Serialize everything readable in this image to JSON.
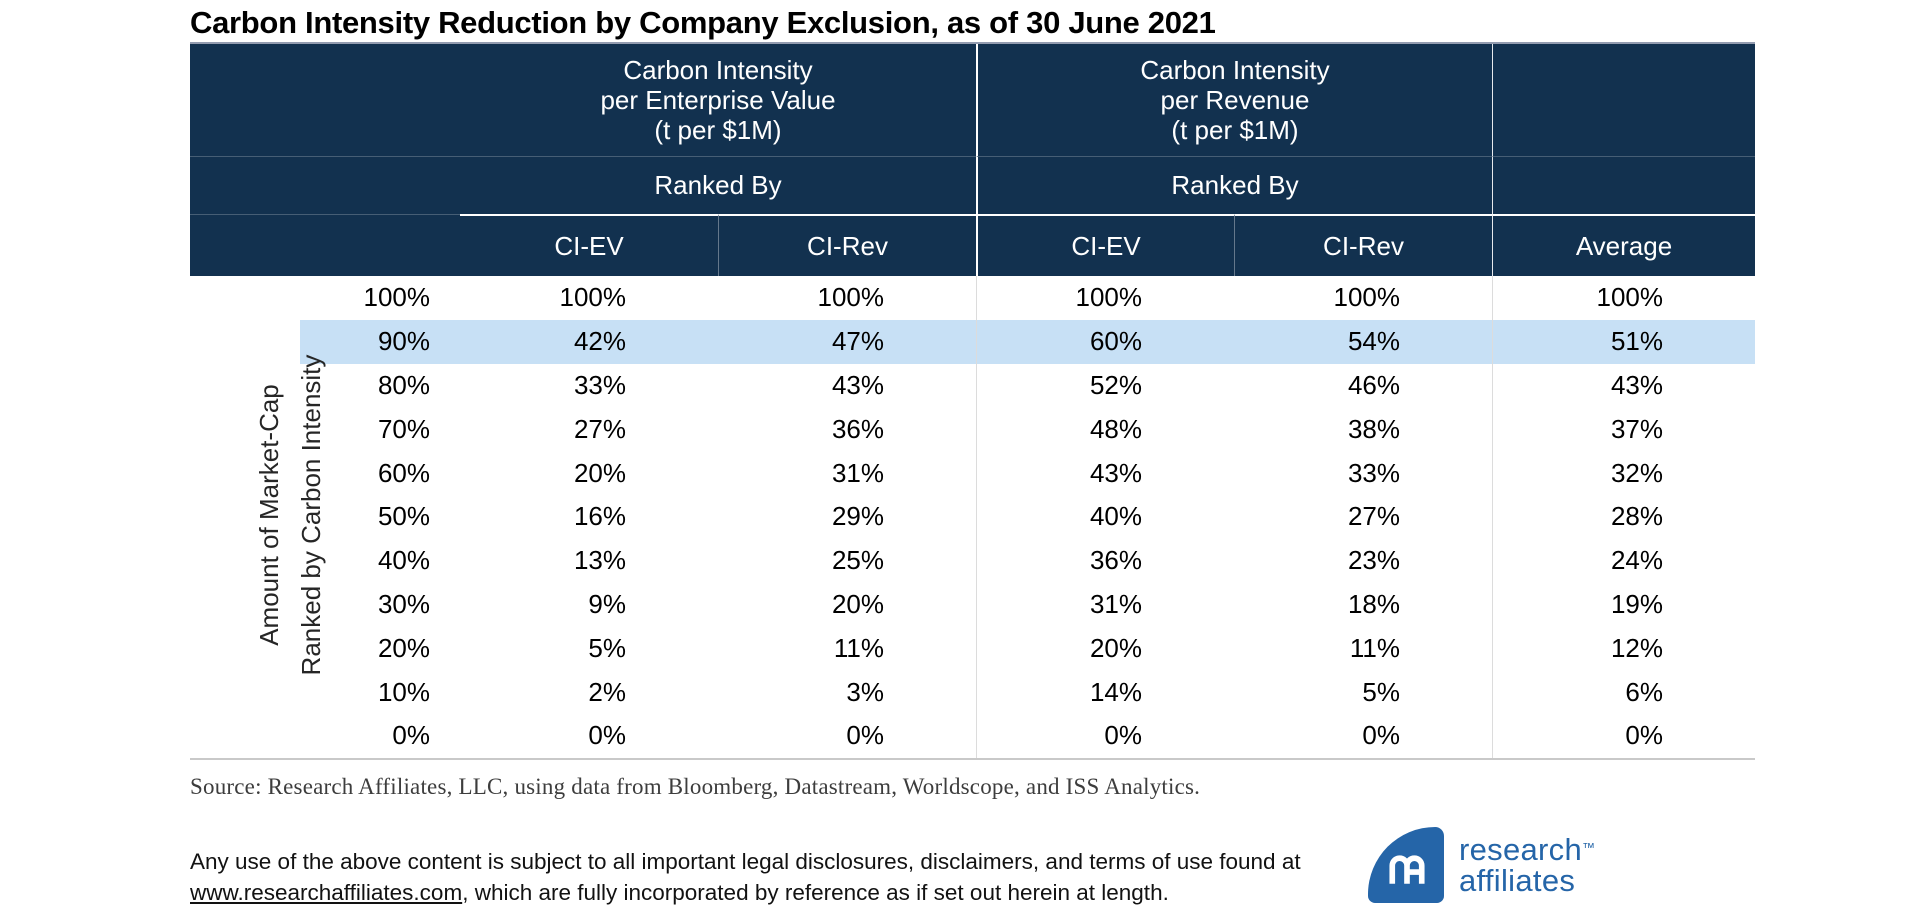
{
  "chart_data": {
    "type": "table",
    "title": "Carbon Intensity Reduction by Company Exclusion, as of 30 June 2021",
    "row_axis_label": {
      "line1": "Amount of Market-Cap",
      "line2": "Ranked by Carbon Intensity"
    },
    "groups": [
      {
        "line1": "Carbon Intensity",
        "line2": "per Enterprise Value",
        "line3": "(t per $1M)",
        "sub": "Ranked By"
      },
      {
        "line1": "Carbon Intensity",
        "line2": "per Revenue",
        "line3": "(t per $1M)",
        "sub": "Ranked By"
      }
    ],
    "columns": [
      "CI-EV",
      "CI-Rev",
      "CI-EV",
      "CI-Rev",
      "Average"
    ],
    "rows": [
      {
        "label": "100%",
        "values": [
          "100%",
          "100%",
          "100%",
          "100%",
          "100%"
        ],
        "highlight": false
      },
      {
        "label": "90%",
        "values": [
          "42%",
          "47%",
          "60%",
          "54%",
          "51%"
        ],
        "highlight": true
      },
      {
        "label": "80%",
        "values": [
          "33%",
          "43%",
          "52%",
          "46%",
          "43%"
        ],
        "highlight": false
      },
      {
        "label": "70%",
        "values": [
          "27%",
          "36%",
          "48%",
          "38%",
          "37%"
        ],
        "highlight": false
      },
      {
        "label": "60%",
        "values": [
          "20%",
          "31%",
          "43%",
          "33%",
          "32%"
        ],
        "highlight": false
      },
      {
        "label": "50%",
        "values": [
          "16%",
          "29%",
          "40%",
          "27%",
          "28%"
        ],
        "highlight": false
      },
      {
        "label": "40%",
        "values": [
          "13%",
          "25%",
          "36%",
          "23%",
          "24%"
        ],
        "highlight": false
      },
      {
        "label": "30%",
        "values": [
          "9%",
          "20%",
          "31%",
          "18%",
          "19%"
        ],
        "highlight": false
      },
      {
        "label": "20%",
        "values": [
          "5%",
          "11%",
          "20%",
          "11%",
          "12%"
        ],
        "highlight": false
      },
      {
        "label": "10%",
        "values": [
          "2%",
          "3%",
          "14%",
          "5%",
          "6%"
        ],
        "highlight": false
      },
      {
        "label": "0%",
        "values": [
          "0%",
          "0%",
          "0%",
          "0%",
          "0%"
        ],
        "highlight": false
      }
    ],
    "highlighted_row_label": "90%",
    "layout_hints": {
      "grid": "off",
      "header_background": "navy",
      "highlight_style": "light-blue row band"
    }
  },
  "source_line": "Source: Research Affiliates, LLC, using data from Bloomberg, Datastream, Worldscope, and ISS Analytics.",
  "legal": {
    "line1": "Any use of the above content is subject to all important legal disclosures, disclaimers, and terms of use found at",
    "link_text": "www.researchaffiliates.com",
    "line2_rest": ", which are fully incorporated by reference as if set out herein at length."
  },
  "logo": {
    "word1": "research",
    "word2": "affiliates",
    "trademark": "™"
  },
  "colors": {
    "header_navy": "#12314f",
    "highlight_blue": "#c7e0f5",
    "logo_blue": "#2565a8",
    "body_text": "#000000",
    "source_text": "#3d3d3d"
  }
}
